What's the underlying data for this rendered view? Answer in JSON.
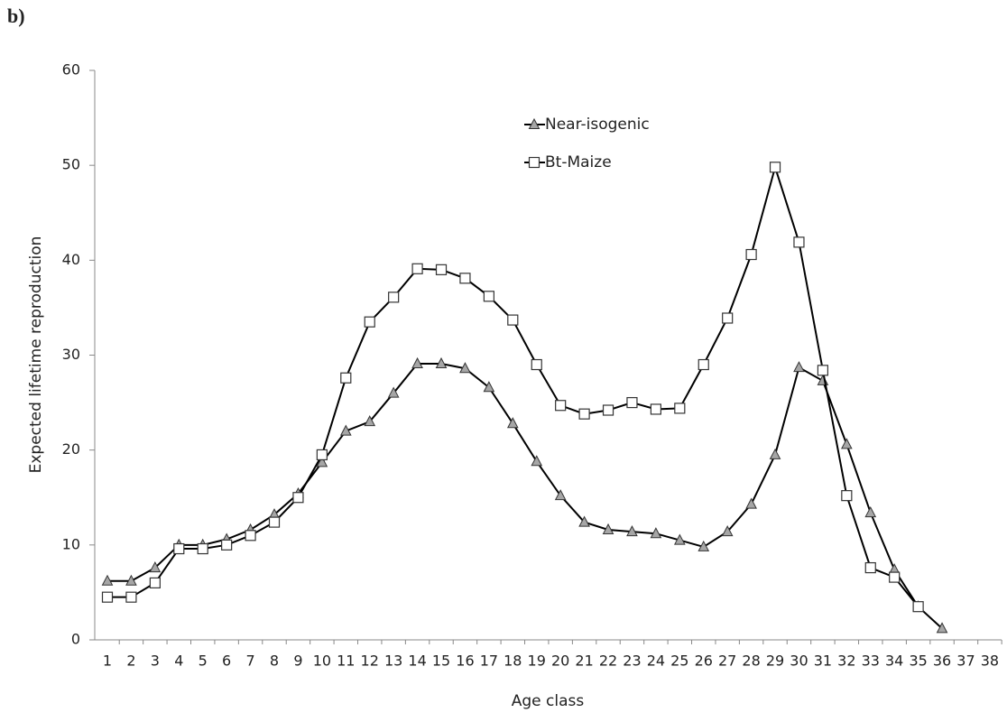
{
  "chart_data": {
    "type": "line",
    "panel_label": "b)",
    "y_label": "Expected lifetime reproduction",
    "x_label": "Age class",
    "categories": [
      "1",
      "2",
      "3",
      "4",
      "5",
      "6",
      "7",
      "8",
      "9",
      "10",
      "11",
      "12",
      "13",
      "14",
      "15",
      "16",
      "17",
      "18",
      "19",
      "20",
      "21",
      "22",
      "23",
      "24",
      "25",
      "26",
      "27",
      "28",
      "29",
      "30",
      "31",
      "32",
      "33",
      "34",
      "35",
      "36",
      "37",
      "38"
    ],
    "series": [
      {
        "name": "Near-isogenic",
        "color": "#000000",
        "marker": "triangle",
        "marker_fill": "#a6a6a6",
        "values": [
          6.2,
          6.2,
          7.6,
          10.0,
          10.0,
          10.6,
          11.6,
          13.2,
          15.4,
          18.7,
          22.0,
          23.0,
          26.0,
          29.1,
          29.1,
          28.6,
          26.6,
          22.8,
          18.8,
          15.2,
          12.4,
          11.6,
          11.4,
          11.2,
          10.5,
          9.8,
          11.4,
          14.3,
          19.5,
          28.7,
          27.3,
          20.6,
          13.4,
          7.4,
          3.5,
          1.2,
          null,
          null
        ]
      },
      {
        "name": "Bt-Maize",
        "color": "#000000",
        "marker": "square",
        "marker_fill": "#ffffff",
        "values": [
          4.5,
          4.5,
          6.0,
          9.6,
          9.6,
          10.0,
          11.0,
          12.4,
          15.0,
          19.5,
          27.6,
          33.5,
          36.1,
          39.1,
          39.0,
          38.1,
          36.2,
          33.7,
          29.0,
          24.7,
          23.8,
          24.2,
          25.0,
          24.3,
          24.4,
          29.0,
          33.9,
          40.6,
          49.8,
          41.9,
          28.4,
          15.2,
          7.6,
          6.6,
          3.5,
          null,
          null,
          null
        ]
      }
    ],
    "ylim": [
      0,
      60
    ],
    "yticks": [
      0,
      10,
      20,
      30,
      40,
      50,
      60
    ],
    "grid": false
  }
}
